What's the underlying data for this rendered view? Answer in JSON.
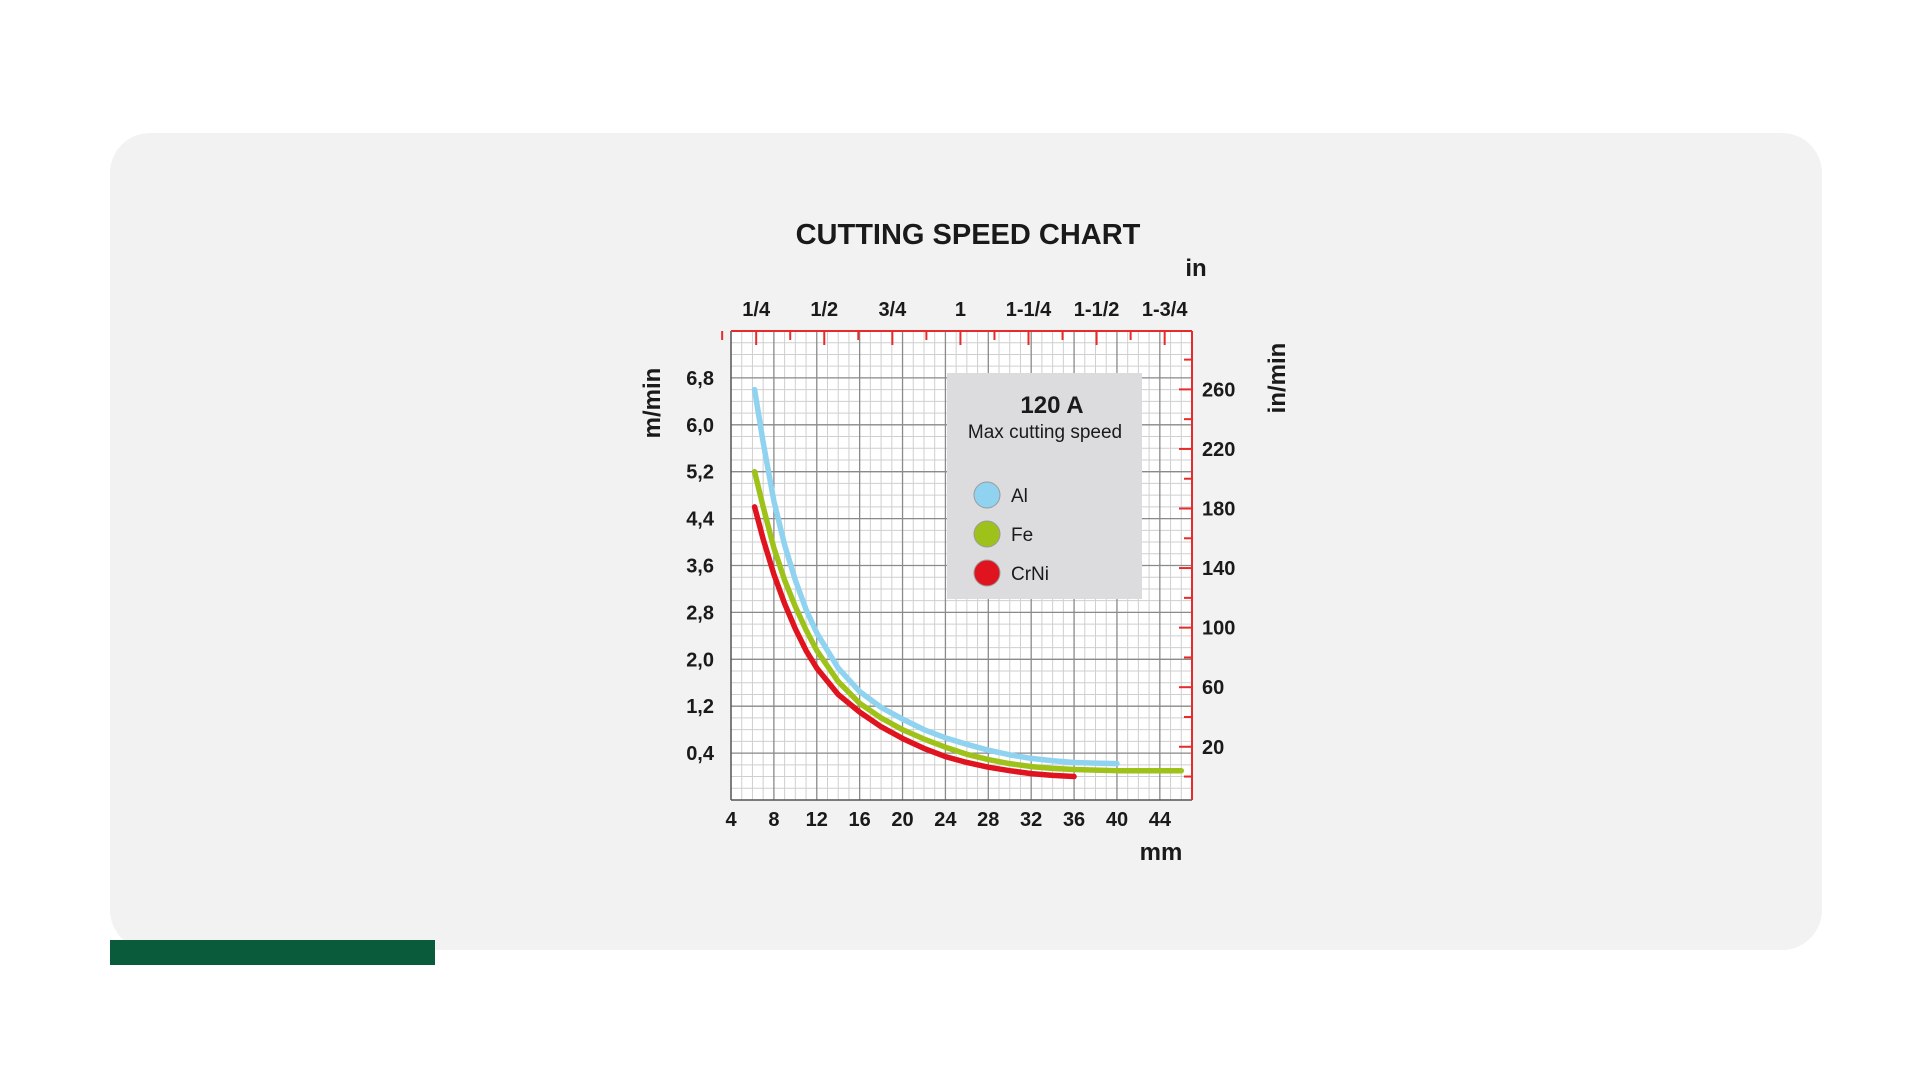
{
  "colors": {
    "card_bg": "#f2f2f2",
    "accent_bar": "#0a5a3c",
    "axis_red": "#e52b2b",
    "legend_bg": "#dcdcdf"
  },
  "chart_data": {
    "type": "line",
    "title": "CUTTING SPEED CHART",
    "xlabel": "mm",
    "ylabel": "m/min",
    "xlim": [
      4,
      47
    ],
    "ylim": [
      -0.4,
      7.6
    ],
    "x_ticks": [
      "4",
      "8",
      "12",
      "16",
      "20",
      "24",
      "28",
      "32",
      "36",
      "40",
      "44"
    ],
    "y_ticks": [
      "0,4",
      "1,2",
      "2,0",
      "2,8",
      "3,6",
      "4,4",
      "5,2",
      "6,0",
      "6,8"
    ],
    "top_axis": {
      "label": "in",
      "ticks": [
        "1/4",
        "1/2",
        "3/4",
        "1",
        "1-1/4",
        "1-1/2",
        "1-3/4"
      ]
    },
    "right_axis": {
      "label": "in/min",
      "ticks": [
        "20",
        "60",
        "100",
        "140",
        "180",
        "220",
        "260"
      ]
    },
    "grid": true,
    "legend": {
      "placement": "top-right",
      "title": "120 A",
      "subtitle": "Max cutting speed"
    },
    "series": [
      {
        "name": "Al",
        "color": "#8fd3f0",
        "x": [
          6.2,
          7,
          8,
          9,
          10,
          11,
          12,
          14,
          16,
          18,
          20,
          22,
          24,
          26,
          28,
          30,
          32,
          34,
          36,
          38,
          40
        ],
        "y": [
          6.6,
          5.7,
          4.7,
          3.95,
          3.35,
          2.85,
          2.45,
          1.85,
          1.45,
          1.18,
          0.98,
          0.8,
          0.66,
          0.55,
          0.45,
          0.37,
          0.31,
          0.27,
          0.24,
          0.23,
          0.22
        ]
      },
      {
        "name": "Fe",
        "color": "#9ec21a",
        "x": [
          6.2,
          7,
          8,
          9,
          10,
          11,
          12,
          14,
          16,
          18,
          20,
          22,
          24,
          26,
          28,
          30,
          32,
          34,
          36,
          38,
          40,
          42,
          44,
          46
        ],
        "y": [
          5.2,
          4.6,
          3.9,
          3.35,
          2.9,
          2.5,
          2.15,
          1.62,
          1.25,
          1.0,
          0.8,
          0.64,
          0.5,
          0.38,
          0.29,
          0.22,
          0.17,
          0.14,
          0.12,
          0.11,
          0.1,
          0.1,
          0.1,
          0.1
        ]
      },
      {
        "name": "CrNi",
        "color": "#e0141e",
        "x": [
          6.2,
          7,
          8,
          9,
          10,
          11,
          12,
          14,
          16,
          18,
          20,
          22,
          24,
          26,
          28,
          30,
          32,
          34,
          36
        ],
        "y": [
          4.6,
          4.05,
          3.45,
          2.95,
          2.52,
          2.15,
          1.85,
          1.4,
          1.1,
          0.85,
          0.65,
          0.48,
          0.34,
          0.24,
          0.16,
          0.1,
          0.05,
          0.02,
          0.0
        ]
      }
    ]
  }
}
